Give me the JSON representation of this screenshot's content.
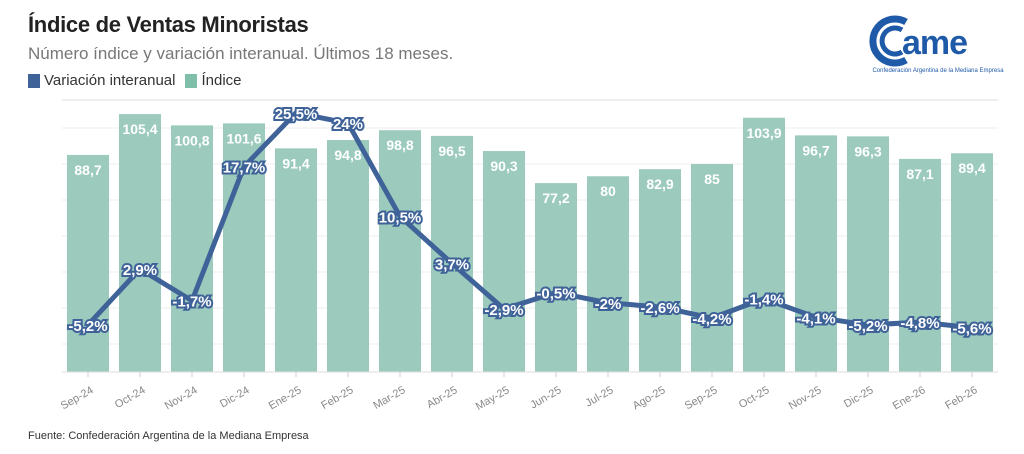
{
  "title": "Índice de Ventas Minoristas",
  "subtitle": "Número índice y variación interanual. Últimos 18 meses.",
  "legend": [
    "Variación interanual",
    "Índice"
  ],
  "logo": {
    "text": "came",
    "subtitle": "Confederación Argentina de la Mediana Empresa"
  },
  "source": "Fuente: Confederación Argentina de la Mediana Empresa",
  "colors": {
    "bar": "#9ccbbd",
    "line": "#3f6399",
    "label_bg": "#3f6399"
  },
  "chart_data": {
    "type": "bar+line",
    "categories": [
      "Sep-24",
      "Oct-24",
      "Nov-24",
      "Dic-24",
      "Ene-25",
      "Feb-25",
      "Mar-25",
      "Abr-25",
      "May-25",
      "Jun-25",
      "Jul-25",
      "Ago-25",
      "Sep-25",
      "Oct-25",
      "Nov-25",
      "Dic-25",
      "Ene-26",
      "Feb-26"
    ],
    "series": [
      {
        "name": "Índice",
        "type": "bar",
        "values": [
          88.7,
          105.4,
          100.8,
          101.6,
          91.4,
          94.8,
          98.8,
          96.5,
          90.3,
          77.2,
          80,
          82.9,
          85,
          103.9,
          96.7,
          96.3,
          87.1,
          89.4
        ],
        "labels": [
          "88,7",
          "105,4",
          "100,8",
          "101,6",
          "91,4",
          "94,8",
          "98,8",
          "96,5",
          "90,3",
          "77,2",
          "80",
          "82,9",
          "85",
          "103,9",
          "96,7",
          "96,3",
          "87,1",
          "89,4"
        ]
      },
      {
        "name": "Variación interanual",
        "type": "line",
        "values": [
          -5.2,
          2.9,
          -1.7,
          17.7,
          25.5,
          24,
          10.5,
          3.7,
          -2.9,
          -0.5,
          -2,
          -2.6,
          -4.2,
          -1.4,
          -4.1,
          -5.2,
          -4.8,
          -5.6
        ],
        "labels": [
          "-5,2%",
          "2,9%",
          "-1,7%",
          "17,7%",
          "25,5%",
          "24%",
          "10,5%",
          "3,7%",
          "-2,9%",
          "-0,5%",
          "-2%",
          "-2,6%",
          "-4,2%",
          "-1,4%",
          "-4,1%",
          "-5,2%",
          "-4,8%",
          "-5,6%"
        ]
      }
    ],
    "ylim_bar": [
      0,
      110
    ],
    "ylim_line": [
      -12,
      30
    ],
    "grid": true,
    "legend_position": "top-left"
  }
}
